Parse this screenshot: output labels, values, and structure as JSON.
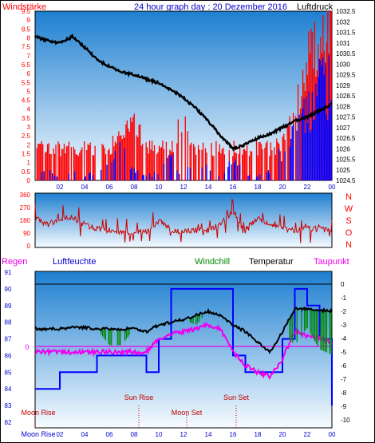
{
  "chart_data": [
    {
      "type": "line",
      "title": "24 hour graph day : 20 Dezember 2016",
      "y_left_label": "Windstärke",
      "y_right_label": "Luftdruck",
      "y_left_ticks": [
        "0",
        "0.5",
        "1",
        "1.5",
        "2",
        "2.5",
        "3",
        "3.5",
        "4",
        "4.5",
        "5",
        "5.5",
        "6",
        "6.5",
        "7",
        "7.5",
        "8",
        "8.5",
        "9",
        "9.5"
      ],
      "y_right_ticks": [
        "1024.5",
        "1025",
        "1025.5",
        "1026",
        "1026.5",
        "1027",
        "1027.5",
        "1028",
        "1028.5",
        "1029",
        "1029.5",
        "1030",
        "1030.5",
        "1031",
        "1031.5",
        "1032",
        "1032.5"
      ],
      "x_ticks": [
        "02",
        "04",
        "06",
        "08",
        "10",
        "12",
        "14",
        "16",
        "18",
        "20",
        "22",
        "00"
      ],
      "ylim_left": [
        0,
        9.5
      ],
      "ylim_right": [
        1024.5,
        1032.5
      ],
      "series": [
        {
          "name": "Luftdruck",
          "axis": "right",
          "x": [
            0,
            1,
            2,
            3,
            4,
            5,
            6,
            7,
            8,
            9,
            10,
            11,
            12,
            13,
            14,
            15,
            16,
            17,
            18,
            19,
            20,
            21,
            22,
            23,
            24
          ],
          "values": [
            1031.3,
            1031.1,
            1031.0,
            1031.3,
            1030.8,
            1030.2,
            1029.9,
            1029.6,
            1029.5,
            1029.3,
            1029.1,
            1028.8,
            1028.4,
            1027.9,
            1027.3,
            1026.6,
            1026.0,
            1026.2,
            1026.5,
            1026.7,
            1027.0,
            1027.3,
            1027.5,
            1027.8,
            1028.1
          ]
        },
        {
          "name": "Windstärke (Böen)",
          "axis": "left",
          "x": [
            0,
            1,
            2,
            3,
            4,
            5,
            6,
            7,
            8,
            9,
            10,
            11,
            12,
            13,
            14,
            15,
            16,
            17,
            18,
            19,
            20,
            21,
            22,
            23,
            24
          ],
          "values": [
            1.8,
            1.8,
            1.8,
            1.8,
            1.8,
            1.8,
            1.8,
            2.5,
            3.5,
            1.8,
            1.8,
            1.8,
            3.5,
            1.8,
            1.8,
            1.8,
            1.8,
            1.8,
            1.8,
            1.8,
            2.0,
            3.5,
            7.0,
            7.5,
            9.5
          ]
        },
        {
          "name": "Windstärke (Mittel)",
          "axis": "left",
          "x": [
            0,
            1,
            2,
            3,
            4,
            5,
            6,
            7,
            8,
            9,
            10,
            11,
            12,
            13,
            14,
            15,
            16,
            17,
            18,
            19,
            20,
            21,
            22,
            23,
            24
          ],
          "values": [
            0.2,
            0.5,
            0.2,
            0.5,
            0.2,
            0.5,
            1.2,
            1.8,
            0.5,
            0.2,
            0.5,
            1.2,
            0.2,
            1.8,
            0.5,
            0.2,
            1.2,
            0.5,
            0.2,
            0.5,
            1.8,
            2.5,
            4.0,
            5.5,
            5.5
          ]
        }
      ]
    },
    {
      "type": "line",
      "y_left_ticks": [
        "0",
        "90",
        "180",
        "270",
        "360"
      ],
      "ylim": [
        0,
        360
      ],
      "y_right_letters": [
        "N",
        "W",
        "S",
        "O",
        "N"
      ],
      "series": [
        {
          "name": "Windrichtung",
          "x": [
            0,
            1,
            2,
            3,
            4,
            5,
            6,
            7,
            8,
            9,
            10,
            11,
            12,
            13,
            14,
            15,
            16,
            17,
            18,
            19,
            20,
            21,
            22,
            23,
            24
          ],
          "values": [
            200,
            150,
            190,
            200,
            150,
            120,
            110,
            100,
            100,
            100,
            180,
            110,
            100,
            110,
            110,
            150,
            250,
            100,
            200,
            150,
            120,
            110,
            120,
            120,
            100
          ]
        }
      ]
    },
    {
      "type": "line",
      "labels": {
        "rain": "Regen",
        "humidity": "Luftfeuchte",
        "windchill": "Windchill",
        "temperature": "Temperatur",
        "dewpoint": "Taupunkt"
      },
      "y_left_ticks": [
        "82",
        "83",
        "84",
        "85",
        "86",
        "87",
        "88",
        "89",
        "90",
        "91"
      ],
      "y_right_ticks": [
        "-10",
        "-9",
        "-8",
        "-7",
        "-6",
        "-5",
        "-4",
        "-3",
        "-2",
        "-1",
        "0"
      ],
      "rain_marker": "0",
      "ylim_left": [
        82,
        91
      ],
      "ylim_right": [
        -10,
        0
      ],
      "x_ticks": [
        "02",
        "04",
        "06",
        "08",
        "10",
        "12",
        "14",
        "16",
        "18",
        "20",
        "22",
        "00"
      ],
      "events": {
        "moon_rise": "Moon Rise",
        "sun_rise": "Sun Rise",
        "moon_set": "Moon Set",
        "sun_set": "Sun Set"
      },
      "series": [
        {
          "name": "Temperatur",
          "x": [
            0,
            1,
            2,
            3,
            4,
            5,
            6,
            7,
            8,
            9,
            10,
            11,
            12,
            13,
            14,
            15,
            16,
            17,
            18,
            19,
            20,
            21,
            22,
            23,
            24
          ],
          "values": [
            -3.3,
            -3.3,
            -3.3,
            -3.2,
            -3.2,
            -3.3,
            -3.3,
            -3.3,
            -3.3,
            -3.5,
            -3.0,
            -2.8,
            -2.6,
            -2.3,
            -2.0,
            -2.3,
            -3.0,
            -3.5,
            -4.3,
            -5.0,
            -3.5,
            -1.8,
            -1.8,
            -1.9,
            -2.0
          ]
        },
        {
          "name": "Taupunkt",
          "x": [
            0,
            1,
            2,
            3,
            4,
            5,
            6,
            7,
            8,
            9,
            10,
            11,
            12,
            13,
            14,
            15,
            16,
            17,
            18,
            19,
            20,
            21,
            22,
            23,
            24
          ],
          "values": [
            -5.0,
            -5.0,
            -5.0,
            -5.0,
            -5.0,
            -5.0,
            -5.0,
            -5.0,
            -5.0,
            -5.0,
            -4.0,
            -3.7,
            -3.5,
            -3.3,
            -3.0,
            -3.3,
            -5.0,
            -6.0,
            -6.5,
            -6.8,
            -5.5,
            -3.5,
            -3.8,
            -4.0,
            -4.3
          ]
        },
        {
          "name": "Luftfeuchte",
          "x": [
            0,
            1,
            2,
            3,
            4,
            5,
            6,
            7,
            8,
            9,
            10,
            11,
            12,
            13,
            14,
            15,
            16,
            17,
            18,
            19,
            20,
            21,
            22,
            23,
            24
          ],
          "values": [
            84,
            84,
            85,
            85,
            85,
            86,
            86,
            86,
            86,
            85,
            87,
            90,
            90,
            90,
            90,
            90,
            86,
            85,
            85,
            85,
            87,
            90,
            89,
            87,
            83
          ]
        },
        {
          "name": "Windchill",
          "x": [
            0,
            1,
            2,
            3,
            4,
            5,
            6,
            7,
            8,
            9,
            10,
            11,
            12,
            13,
            14,
            15,
            16,
            17,
            18,
            19,
            20,
            21,
            22,
            23,
            24
          ],
          "values": [
            -3.3,
            -3.3,
            -3.3,
            -3.2,
            -3.2,
            -3.3,
            -4.5,
            -4.5,
            -3.3,
            -3.5,
            -3.0,
            -2.8,
            -2.6,
            -3.0,
            -2.0,
            -2.3,
            -3.0,
            -3.5,
            -4.3,
            -5.0,
            -3.5,
            -4.5,
            -3.2,
            -4.8,
            -5.2
          ]
        }
      ]
    }
  ],
  "colors": {
    "frame": "#000000",
    "sky_top": "#1e7fd0",
    "sky_bottom": "#f4fbff",
    "wind_gust": "#ff0000",
    "wind_avg": "#0000ff",
    "pressure": "#000000",
    "direction": "#cc0000",
    "humidity": "#0000ff",
    "temperature": "#000000",
    "windchill": "#008800",
    "dewpoint": "#ee00ee",
    "event_text": "#c00000"
  }
}
